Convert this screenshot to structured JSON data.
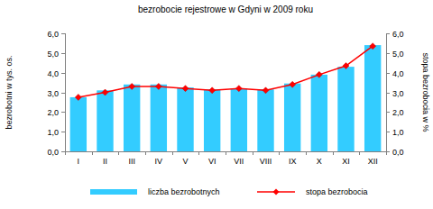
{
  "chart_data": {
    "type": "bar",
    "title": "bezrobocie rejestrowe w Gdyni w 2009 roku",
    "y_label": "bezrobotni w tys. os.",
    "y2_label": "stopa bezrobocia w %",
    "categories": [
      "I",
      "II",
      "III",
      "IV",
      "V",
      "VI",
      "VII",
      "VIII",
      "IX",
      "X",
      "XI",
      "XII"
    ],
    "series": [
      {
        "name": "liczba bezrobotnych",
        "type": "bar",
        "color": "#33ccff",
        "values": [
          2.75,
          3.1,
          3.4,
          3.4,
          3.25,
          3.15,
          3.2,
          3.15,
          3.45,
          3.9,
          4.3,
          5.4
        ]
      },
      {
        "name": "stopa bezrobocia",
        "type": "line",
        "axis": "y2",
        "color": "#ff0000",
        "marker": "diamond",
        "values": [
          2.75,
          3.0,
          3.3,
          3.3,
          3.2,
          3.1,
          3.2,
          3.1,
          3.4,
          3.9,
          4.35,
          5.35
        ]
      }
    ],
    "ylim": [
      0,
      6
    ],
    "yticks": [
      {
        "value": 0,
        "label": "0,0"
      },
      {
        "value": 1,
        "label": "1,0"
      },
      {
        "value": 2,
        "label": "2,0"
      },
      {
        "value": 3,
        "label": "3,0"
      },
      {
        "value": 4,
        "label": "4,0"
      },
      {
        "value": 5,
        "label": "5,0"
      },
      {
        "value": 6,
        "label": "6,0"
      }
    ],
    "y2lim": [
      0,
      6
    ],
    "y2ticks": [
      {
        "value": 0,
        "label": "0,0"
      },
      {
        "value": 1,
        "label": "1,0"
      },
      {
        "value": 2,
        "label": "2,0"
      },
      {
        "value": 3,
        "label": "3,0"
      },
      {
        "value": 4,
        "label": "4,0"
      },
      {
        "value": 5,
        "label": "5,0"
      },
      {
        "value": 6,
        "label": "6,0"
      }
    ],
    "grid": false,
    "legend": "bottom"
  }
}
